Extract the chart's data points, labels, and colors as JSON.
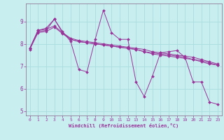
{
  "xlabel": "Windchill (Refroidissement éolien,°C)",
  "background_color": "#c8eef0",
  "grid_color": "#aadddd",
  "line_color": "#993399",
  "spine_color": "#886688",
  "tick_color": "#993399",
  "xlim": [
    -0.5,
    23.5
  ],
  "ylim": [
    4.8,
    9.8
  ],
  "xticks": [
    0,
    1,
    2,
    3,
    4,
    5,
    6,
    7,
    8,
    9,
    10,
    11,
    12,
    13,
    14,
    15,
    16,
    17,
    18,
    19,
    20,
    21,
    22,
    23
  ],
  "yticks": [
    5,
    6,
    7,
    8,
    9
  ],
  "series": [
    [
      7.8,
      8.6,
      8.7,
      9.1,
      8.55,
      8.1,
      6.85,
      6.75,
      8.2,
      9.5,
      8.5,
      8.2,
      8.2,
      6.3,
      5.65,
      6.55,
      7.6,
      7.65,
      7.7,
      7.4,
      6.3,
      6.3,
      5.4,
      5.3
    ],
    [
      7.8,
      8.6,
      8.65,
      8.8,
      8.5,
      8.25,
      8.15,
      8.1,
      8.05,
      8.0,
      7.95,
      7.9,
      7.85,
      7.8,
      7.75,
      7.65,
      7.6,
      7.55,
      7.5,
      7.45,
      7.4,
      7.3,
      7.2,
      7.1
    ],
    [
      7.8,
      8.55,
      8.6,
      9.1,
      8.5,
      8.2,
      8.1,
      8.05,
      8.0,
      7.95,
      7.9,
      7.85,
      7.8,
      7.75,
      7.65,
      7.6,
      7.55,
      7.5,
      7.45,
      7.4,
      7.3,
      7.25,
      7.15,
      7.05
    ],
    [
      7.75,
      8.5,
      8.55,
      8.75,
      8.45,
      8.2,
      8.1,
      8.05,
      8.0,
      7.95,
      7.9,
      7.85,
      7.8,
      7.75,
      7.65,
      7.55,
      7.5,
      7.45,
      7.4,
      7.35,
      7.3,
      7.2,
      7.1,
      7.05
    ]
  ]
}
